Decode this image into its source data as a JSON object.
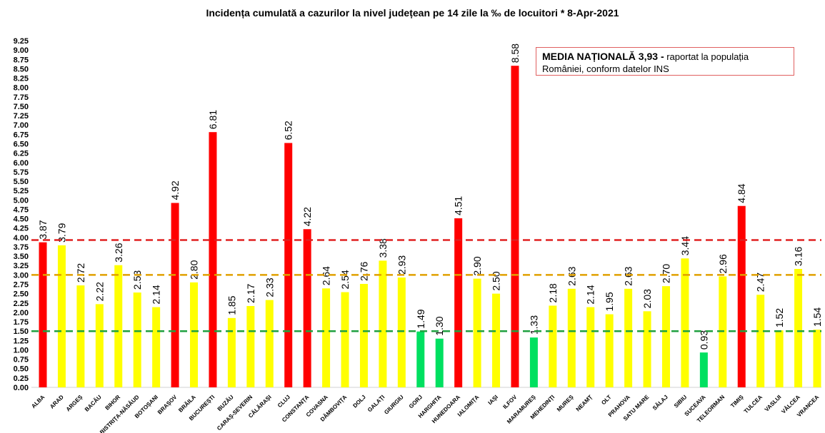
{
  "chart_data": {
    "type": "bar",
    "title": "Incidența cumulată a cazurilor la nivel județean pe 14 zile la ‰ de locuitori *   8-Apr-2021",
    "xlabel": "",
    "ylabel": "",
    "ylim": [
      0,
      9.25
    ],
    "ytick_step": 0.25,
    "grid": false,
    "categories": [
      "ALBA",
      "ARAD",
      "ARGEȘ",
      "BACĂU",
      "BIHOR",
      "BISTRIȚA-NĂSĂUD",
      "BOTOȘANI",
      "BRAȘOV",
      "BRĂILA",
      "BUCUREȘTI",
      "BUZĂU",
      "CARAȘ-SEVERIN",
      "CĂLĂRAȘI",
      "CLUJ",
      "CONSTANȚA",
      "COVASNA",
      "DÂMBOVIȚA",
      "DOLJ",
      "GALAȚI",
      "GIURGIU",
      "GORJ",
      "HARGHITA",
      "HUNEDOARA",
      "IALOMIȚA",
      "IAȘI",
      "ILFOV",
      "MARAMUREȘ",
      "MEHEDINȚI",
      "MUREȘ",
      "NEAMȚ",
      "OLT",
      "PRAHOVA",
      "SATU MARE",
      "SĂLAJ",
      "SIBIU",
      "SUCEAVA",
      "TELEORMAN",
      "TIMIȘ",
      "TULCEA",
      "VASLUI",
      "VÂLCEA",
      "VRANCEA"
    ],
    "values": [
      3.87,
      3.79,
      2.72,
      2.22,
      3.26,
      2.53,
      2.14,
      4.92,
      2.8,
      6.81,
      1.85,
      2.17,
      2.33,
      6.52,
      4.22,
      2.64,
      2.54,
      2.76,
      3.38,
      2.93,
      1.49,
      1.3,
      4.51,
      2.9,
      2.5,
      8.58,
      1.33,
      2.18,
      2.63,
      2.14,
      1.95,
      2.63,
      2.03,
      2.7,
      3.44,
      0.93,
      2.96,
      4.84,
      2.47,
      1.52,
      3.16,
      1.54
    ],
    "colors": {
      "high": "#ff0000",
      "medium": "#ffff00",
      "low": "#00e060"
    },
    "reference_lines": [
      {
        "value": 3.93,
        "color": "#e02020",
        "style": "dashed"
      },
      {
        "value": 3.0,
        "color": "#e0a000",
        "style": "dashed"
      },
      {
        "value": 1.5,
        "color": "#20a040",
        "style": "dashed"
      }
    ],
    "annotation": {
      "bold": "MEDIA NAȚIONALĂ  3,93 -",
      "text": " raportat la populația României, conform datelor INS"
    }
  }
}
